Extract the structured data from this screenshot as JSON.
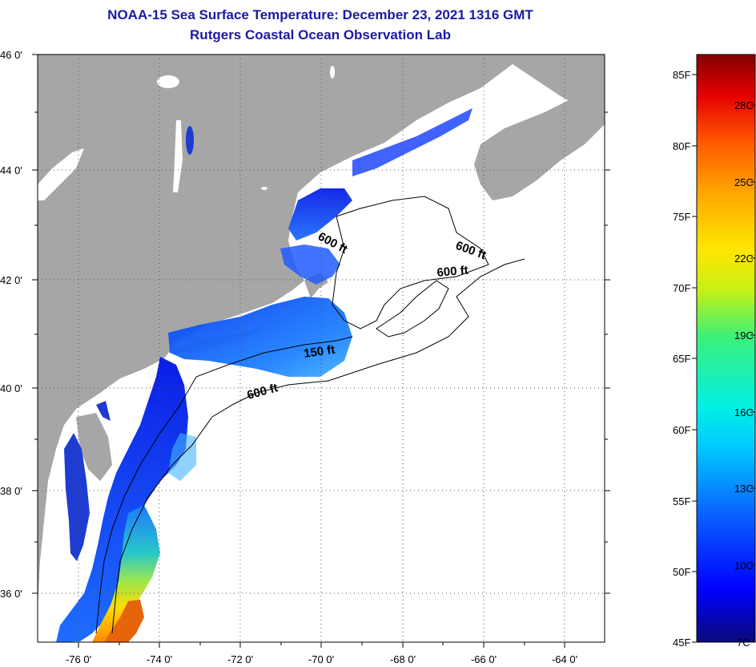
{
  "title": {
    "line1": "NOAA-15 Sea Surface Temperature:  December 23, 2021 1316 GMT",
    "line2": "Rutgers Coastal Ocean Observation Lab"
  },
  "map": {
    "lon_labels": [
      "-76 0'",
      "-74 0'",
      "-72 0'",
      "-70 0'",
      "-68 0'",
      "-66 0'",
      "-64 0'"
    ],
    "lat_labels": [
      "46 0'",
      "44 0'",
      "42 0'",
      "40 0'",
      "38 0'",
      "36 0'"
    ],
    "contour_labels": [
      "600 ft",
      "600 ft",
      "600 ft",
      "150 ft",
      "600 ft"
    ],
    "colors": {
      "land": "#a6a6a6",
      "ocean_nodata": "#ffffff",
      "grid": "#555555"
    }
  },
  "colorbar": {
    "fahrenheit_labels": [
      "85F",
      "80F",
      "75F",
      "70F",
      "65F",
      "60F",
      "55F",
      "50F",
      "45F"
    ],
    "celsius_labels": [
      "28C",
      "25C",
      "22C",
      "19C",
      "16C",
      "13C",
      "10C",
      "7C"
    ],
    "stops": [
      "#0a0a7a",
      "#0000ff",
      "#0a64ff",
      "#00c8ff",
      "#00f0e6",
      "#3cf078",
      "#c8f014",
      "#ffe600",
      "#ffaa00",
      "#ff5a00",
      "#e60000",
      "#820000"
    ]
  }
}
